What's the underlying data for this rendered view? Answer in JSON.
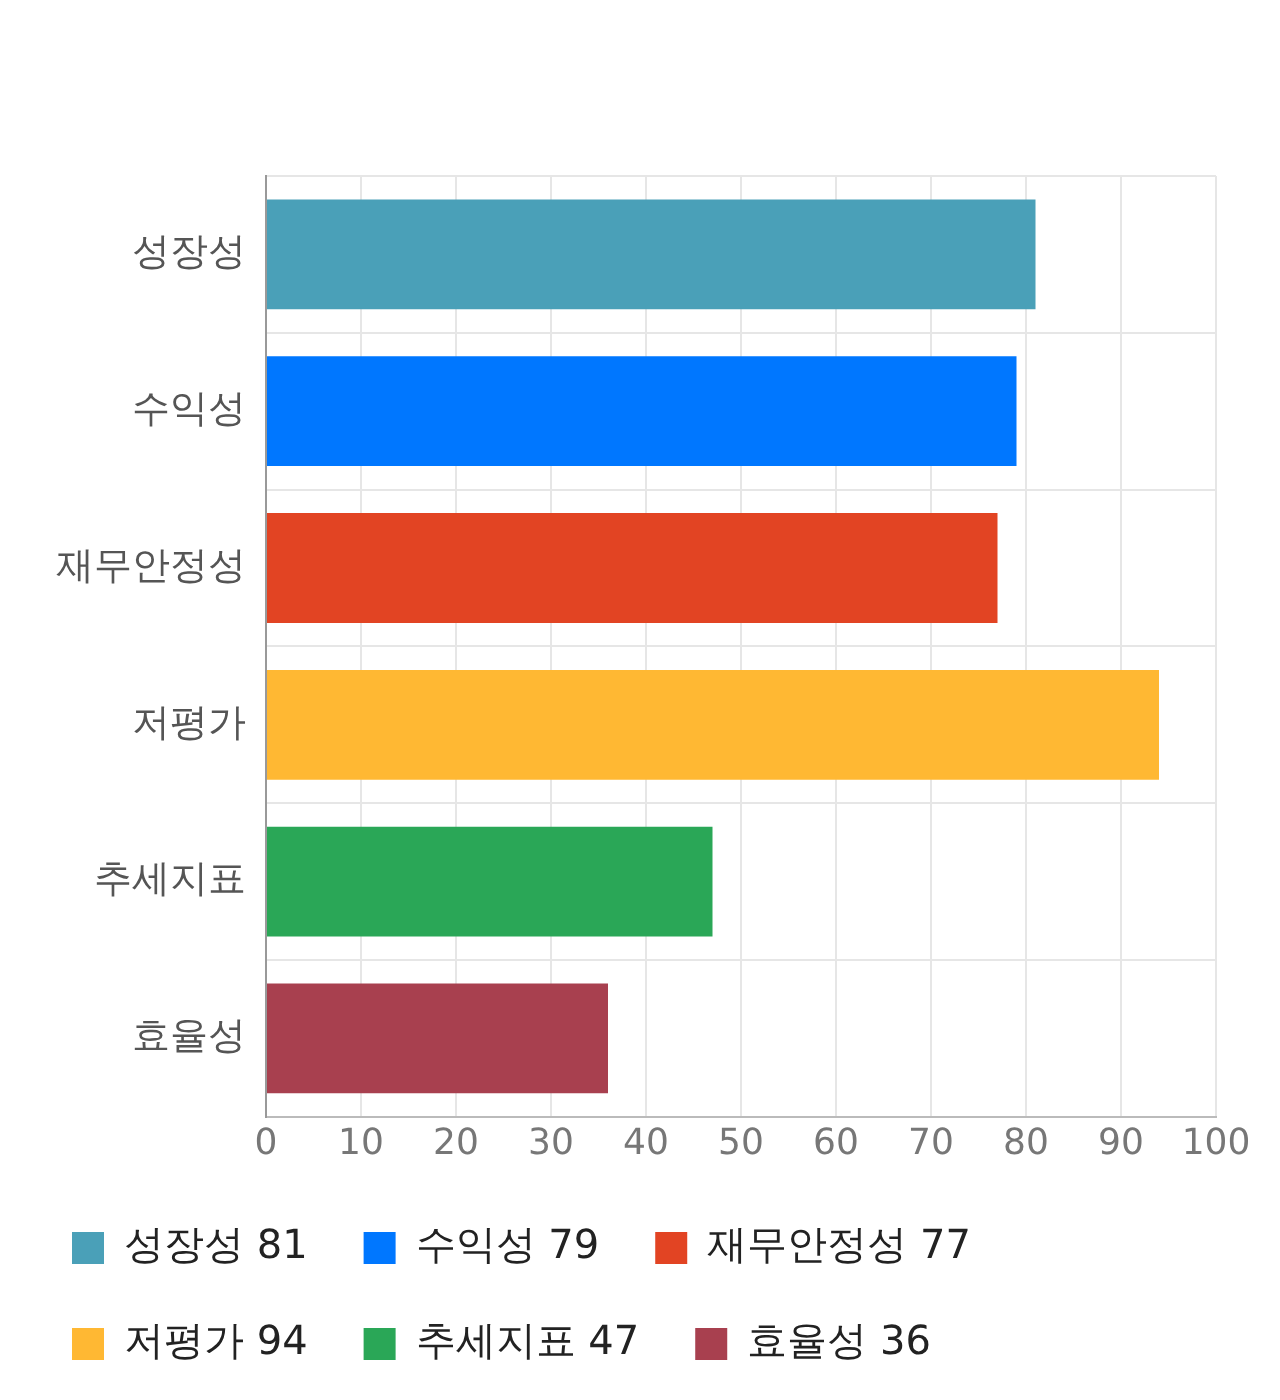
{
  "chart_data": {
    "type": "bar",
    "orientation": "horizontal",
    "stacked": true,
    "categories": [
      "성장성",
      "수익성",
      "재무안정성",
      "저평가",
      "추세지표",
      "효율성"
    ],
    "series": [
      {
        "name": "성장성 81",
        "color": "#4aa0b8",
        "values": [
          81,
          null,
          null,
          null,
          null,
          null
        ]
      },
      {
        "name": "수익성 79",
        "color": "#0077ff",
        "values": [
          null,
          79,
          null,
          null,
          null,
          null
        ]
      },
      {
        "name": "재무안정성 77",
        "color": "#e24423",
        "values": [
          null,
          null,
          77,
          null,
          null,
          null
        ]
      },
      {
        "name": "저평가 94",
        "color": "#ffb833",
        "values": [
          null,
          null,
          null,
          94,
          null,
          null
        ]
      },
      {
        "name": "추세지표 47",
        "color": "#2aa757",
        "values": [
          null,
          null,
          null,
          null,
          47,
          null
        ]
      },
      {
        "name": "효율성 36",
        "color": "#a8404f",
        "values": [
          null,
          null,
          null,
          null,
          null,
          36
        ]
      }
    ],
    "xlim": [
      0,
      100
    ],
    "xticks": [
      0,
      10,
      20,
      30,
      40,
      50,
      60,
      70,
      80,
      90,
      100
    ],
    "grid": true,
    "legend": "bottom"
  }
}
